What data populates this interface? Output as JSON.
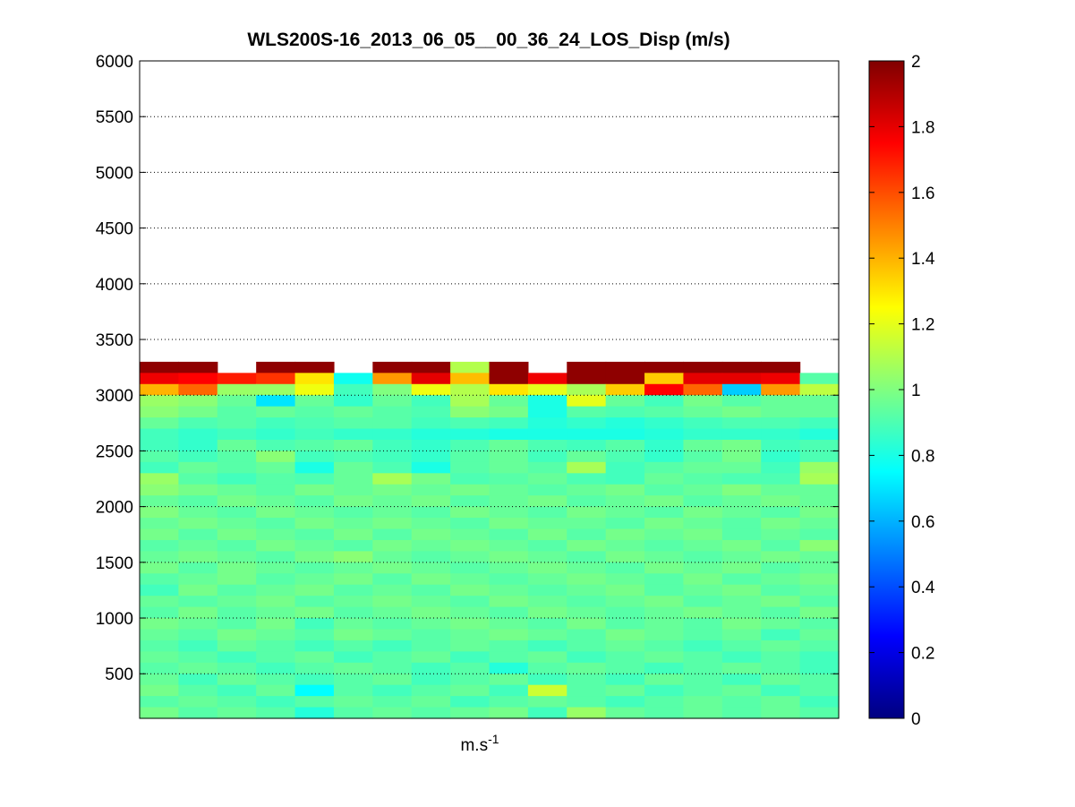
{
  "chart_data": {
    "type": "heatmap",
    "title": "WLS200S-16_2013_06_05__00_36_24_LOS_Disp (m/s)",
    "xlabel": {
      "base": "m.s",
      "superscript": "-1"
    },
    "ylabel": "",
    "ylim": [
      100,
      6000
    ],
    "yticks": [
      500,
      1000,
      1500,
      2000,
      2500,
      3000,
      3500,
      4000,
      4500,
      5000,
      5500,
      6000
    ],
    "ytick_labels": [
      "500",
      "1000",
      "1500",
      "2000",
      "2500",
      "3000",
      "3500",
      "4000",
      "4500",
      "5000",
      "5500",
      "6000"
    ],
    "y_grid": "dotted",
    "colormap": "jet",
    "clim": [
      0,
      2
    ],
    "colorbar_ticks": [
      0,
      0.2,
      0.4,
      0.6,
      0.8,
      1,
      1.2,
      1.4,
      1.6,
      1.8,
      2
    ],
    "colorbar_tick_labels": [
      "0",
      "0.2",
      "0.4",
      "0.6",
      "0.8",
      "1",
      "1.2",
      "1.4",
      "1.6",
      "1.8",
      "2"
    ],
    "colorbar_placement": "right",
    "columns": 18,
    "row_height": 100,
    "rows": [
      {
        "y": 3250,
        "values": [
          1.97,
          1.97,
          null,
          1.97,
          1.97,
          null,
          1.97,
          1.97,
          1.1,
          1.97,
          null,
          1.97,
          1.97,
          1.97,
          1.97,
          1.97,
          1.97,
          null
        ]
      },
      {
        "y": 3150,
        "values": [
          1.78,
          1.75,
          1.7,
          1.65,
          1.3,
          0.78,
          1.45,
          1.8,
          1.38,
          1.97,
          1.78,
          1.97,
          1.97,
          1.35,
          1.8,
          1.8,
          1.78,
          0.92
        ]
      },
      {
        "y": 3050,
        "values": [
          1.4,
          1.55,
          1.05,
          1.05,
          1.22,
          0.88,
          1.0,
          1.22,
          1.1,
          1.3,
          1.2,
          1.08,
          1.35,
          1.75,
          1.55,
          0.65,
          1.45,
          1.12
        ]
      },
      {
        "y": 2950,
        "values": [
          1.05,
          1.02,
          0.95,
          0.7,
          0.95,
          0.85,
          0.95,
          0.88,
          1.08,
          0.95,
          0.8,
          1.2,
          0.95,
          0.88,
          0.98,
          0.92,
          0.95,
          0.95
        ]
      },
      {
        "y": 2850,
        "values": [
          1.02,
          0.98,
          0.92,
          0.95,
          0.92,
          0.95,
          0.92,
          0.9,
          1.02,
          0.98,
          0.8,
          0.92,
          0.9,
          0.92,
          0.95,
          0.98,
          0.95,
          0.95
        ]
      },
      {
        "y": 2750,
        "values": [
          0.95,
          0.9,
          0.92,
          0.88,
          0.9,
          0.92,
          0.92,
          0.88,
          0.9,
          0.88,
          0.82,
          0.85,
          0.82,
          0.85,
          0.88,
          0.9,
          0.9,
          0.88
        ]
      },
      {
        "y": 2650,
        "values": [
          0.88,
          0.85,
          0.88,
          0.85,
          0.88,
          0.85,
          0.85,
          0.82,
          0.82,
          0.8,
          0.8,
          0.8,
          0.8,
          0.82,
          0.85,
          0.85,
          0.85,
          0.82
        ]
      },
      {
        "y": 2550,
        "values": [
          0.88,
          0.85,
          0.95,
          0.9,
          0.92,
          0.95,
          0.88,
          0.85,
          0.9,
          0.95,
          0.9,
          0.88,
          0.92,
          0.85,
          0.95,
          0.98,
          0.88,
          0.9
        ]
      },
      {
        "y": 2450,
        "values": [
          0.92,
          0.88,
          0.92,
          1.02,
          0.88,
          0.9,
          0.88,
          0.85,
          0.92,
          0.95,
          0.88,
          0.95,
          0.9,
          0.85,
          0.92,
          0.98,
          0.85,
          0.9
        ]
      },
      {
        "y": 2350,
        "values": [
          0.88,
          0.95,
          0.92,
          0.95,
          0.8,
          0.95,
          0.9,
          0.8,
          0.92,
          0.95,
          0.92,
          1.08,
          0.88,
          0.92,
          0.95,
          0.95,
          0.88,
          1.05
        ]
      },
      {
        "y": 2250,
        "values": [
          1.05,
          0.92,
          0.88,
          0.92,
          0.9,
          0.95,
          1.08,
          0.98,
          0.9,
          0.92,
          0.95,
          0.9,
          0.88,
          0.95,
          0.92,
          0.9,
          0.9,
          1.08
        ]
      },
      {
        "y": 2150,
        "values": [
          1.02,
          0.98,
          0.95,
          0.92,
          0.98,
          0.95,
          0.98,
          0.95,
          0.98,
          0.95,
          0.92,
          0.95,
          0.98,
          0.92,
          0.95,
          1.0,
          0.95,
          0.95
        ]
      },
      {
        "y": 2050,
        "values": [
          0.95,
          0.92,
          0.98,
          0.95,
          0.92,
          0.98,
          0.95,
          0.98,
          0.92,
          0.95,
          0.98,
          0.92,
          0.95,
          0.98,
          0.92,
          0.95,
          0.98,
          0.95
        ]
      },
      {
        "y": 1950,
        "values": [
          1.0,
          0.95,
          0.92,
          0.98,
          0.95,
          0.92,
          0.95,
          0.92,
          0.98,
          0.95,
          0.92,
          0.98,
          0.95,
          0.92,
          0.98,
          0.95,
          0.92,
          0.98
        ]
      },
      {
        "y": 1850,
        "values": [
          0.95,
          0.98,
          0.95,
          0.92,
          0.98,
          0.95,
          0.98,
          0.95,
          0.92,
          0.98,
          0.95,
          0.95,
          0.92,
          0.98,
          0.95,
          0.92,
          0.98,
          0.95
        ]
      },
      {
        "y": 1750,
        "values": [
          0.98,
          0.92,
          0.98,
          0.95,
          0.92,
          0.98,
          0.92,
          0.98,
          0.95,
          0.92,
          0.98,
          0.92,
          0.98,
          0.95,
          0.98,
          0.92,
          0.95,
          0.92
        ]
      },
      {
        "y": 1650,
        "values": [
          0.92,
          0.95,
          0.92,
          0.98,
          0.95,
          0.92,
          0.98,
          0.95,
          0.98,
          0.95,
          0.92,
          0.98,
          0.95,
          0.92,
          0.95,
          0.98,
          0.92,
          1.02
        ]
      },
      {
        "y": 1550,
        "values": [
          0.95,
          0.98,
          0.95,
          0.92,
          0.98,
          1.02,
          0.95,
          0.92,
          0.95,
          0.98,
          0.95,
          0.92,
          0.98,
          0.95,
          0.92,
          0.95,
          0.98,
          0.95
        ]
      },
      {
        "y": 1450,
        "values": [
          0.98,
          0.92,
          0.98,
          0.95,
          0.92,
          0.95,
          0.98,
          0.95,
          0.92,
          0.95,
          0.98,
          0.95,
          0.92,
          0.98,
          0.95,
          0.98,
          0.92,
          0.95
        ]
      },
      {
        "y": 1350,
        "values": [
          0.92,
          0.95,
          0.98,
          0.92,
          0.95,
          0.98,
          0.92,
          0.98,
          0.95,
          0.92,
          0.95,
          0.98,
          0.95,
          0.92,
          0.98,
          0.92,
          0.95,
          0.98
        ]
      },
      {
        "y": 1250,
        "values": [
          0.88,
          0.98,
          0.92,
          0.95,
          0.98,
          0.92,
          0.95,
          0.92,
          0.98,
          0.95,
          0.92,
          0.95,
          0.98,
          0.92,
          0.95,
          0.98,
          0.92,
          0.95
        ]
      },
      {
        "y": 1150,
        "values": [
          0.95,
          0.92,
          0.95,
          0.98,
          0.92,
          0.95,
          0.98,
          0.95,
          0.92,
          0.98,
          0.95,
          0.92,
          0.95,
          0.98,
          0.92,
          0.95,
          0.98,
          0.92
        ]
      },
      {
        "y": 1050,
        "values": [
          0.92,
          0.98,
          0.92,
          0.95,
          0.98,
          0.92,
          0.95,
          0.98,
          0.95,
          0.92,
          0.98,
          0.95,
          0.92,
          0.95,
          0.98,
          0.95,
          0.92,
          0.98
        ]
      },
      {
        "y": 950,
        "values": [
          0.98,
          0.95,
          0.92,
          0.98,
          0.88,
          0.95,
          0.92,
          0.95,
          0.98,
          0.95,
          0.92,
          0.98,
          0.92,
          0.95,
          0.92,
          0.98,
          0.95,
          0.92
        ]
      },
      {
        "y": 850,
        "values": [
          0.95,
          0.92,
          0.98,
          0.95,
          0.92,
          0.98,
          0.95,
          0.92,
          0.95,
          0.98,
          0.95,
          0.92,
          0.98,
          0.95,
          0.92,
          0.95,
          0.88,
          0.95
        ]
      },
      {
        "y": 750,
        "values": [
          0.92,
          0.88,
          0.95,
          0.92,
          0.88,
          0.92,
          0.88,
          0.92,
          0.95,
          0.92,
          0.88,
          0.92,
          0.95,
          0.92,
          0.88,
          0.92,
          0.95,
          0.92
        ]
      },
      {
        "y": 650,
        "values": [
          0.95,
          0.92,
          0.88,
          0.92,
          0.95,
          0.88,
          0.92,
          0.95,
          0.88,
          0.92,
          0.95,
          0.88,
          0.92,
          0.95,
          0.92,
          0.88,
          0.92,
          0.88
        ]
      },
      {
        "y": 550,
        "values": [
          0.92,
          0.95,
          0.92,
          0.88,
          0.92,
          0.95,
          0.92,
          0.88,
          0.92,
          0.82,
          0.92,
          0.95,
          0.92,
          0.88,
          0.92,
          0.95,
          0.92,
          0.88
        ]
      },
      {
        "y": 450,
        "values": [
          0.95,
          0.88,
          0.95,
          0.92,
          0.88,
          0.92,
          0.95,
          0.88,
          0.92,
          0.95,
          0.88,
          0.92,
          0.88,
          0.95,
          0.92,
          0.88,
          0.95,
          0.92
        ]
      },
      {
        "y": 350,
        "values": [
          0.98,
          0.92,
          0.88,
          0.95,
          0.75,
          0.92,
          0.88,
          0.92,
          0.95,
          0.88,
          1.15,
          0.92,
          0.95,
          0.88,
          0.92,
          0.95,
          0.88,
          0.92
        ]
      },
      {
        "y": 250,
        "values": [
          0.92,
          0.95,
          0.92,
          0.88,
          0.92,
          0.95,
          0.92,
          0.95,
          0.88,
          0.92,
          0.95,
          0.92,
          0.88,
          0.92,
          0.95,
          0.92,
          0.95,
          0.88
        ]
      },
      {
        "y": 150,
        "values": [
          0.98,
          0.92,
          0.95,
          0.92,
          0.82,
          0.92,
          0.95,
          0.92,
          0.95,
          0.98,
          0.88,
          1.05,
          0.95,
          0.92,
          0.95,
          0.92,
          0.95,
          0.92
        ]
      }
    ]
  }
}
